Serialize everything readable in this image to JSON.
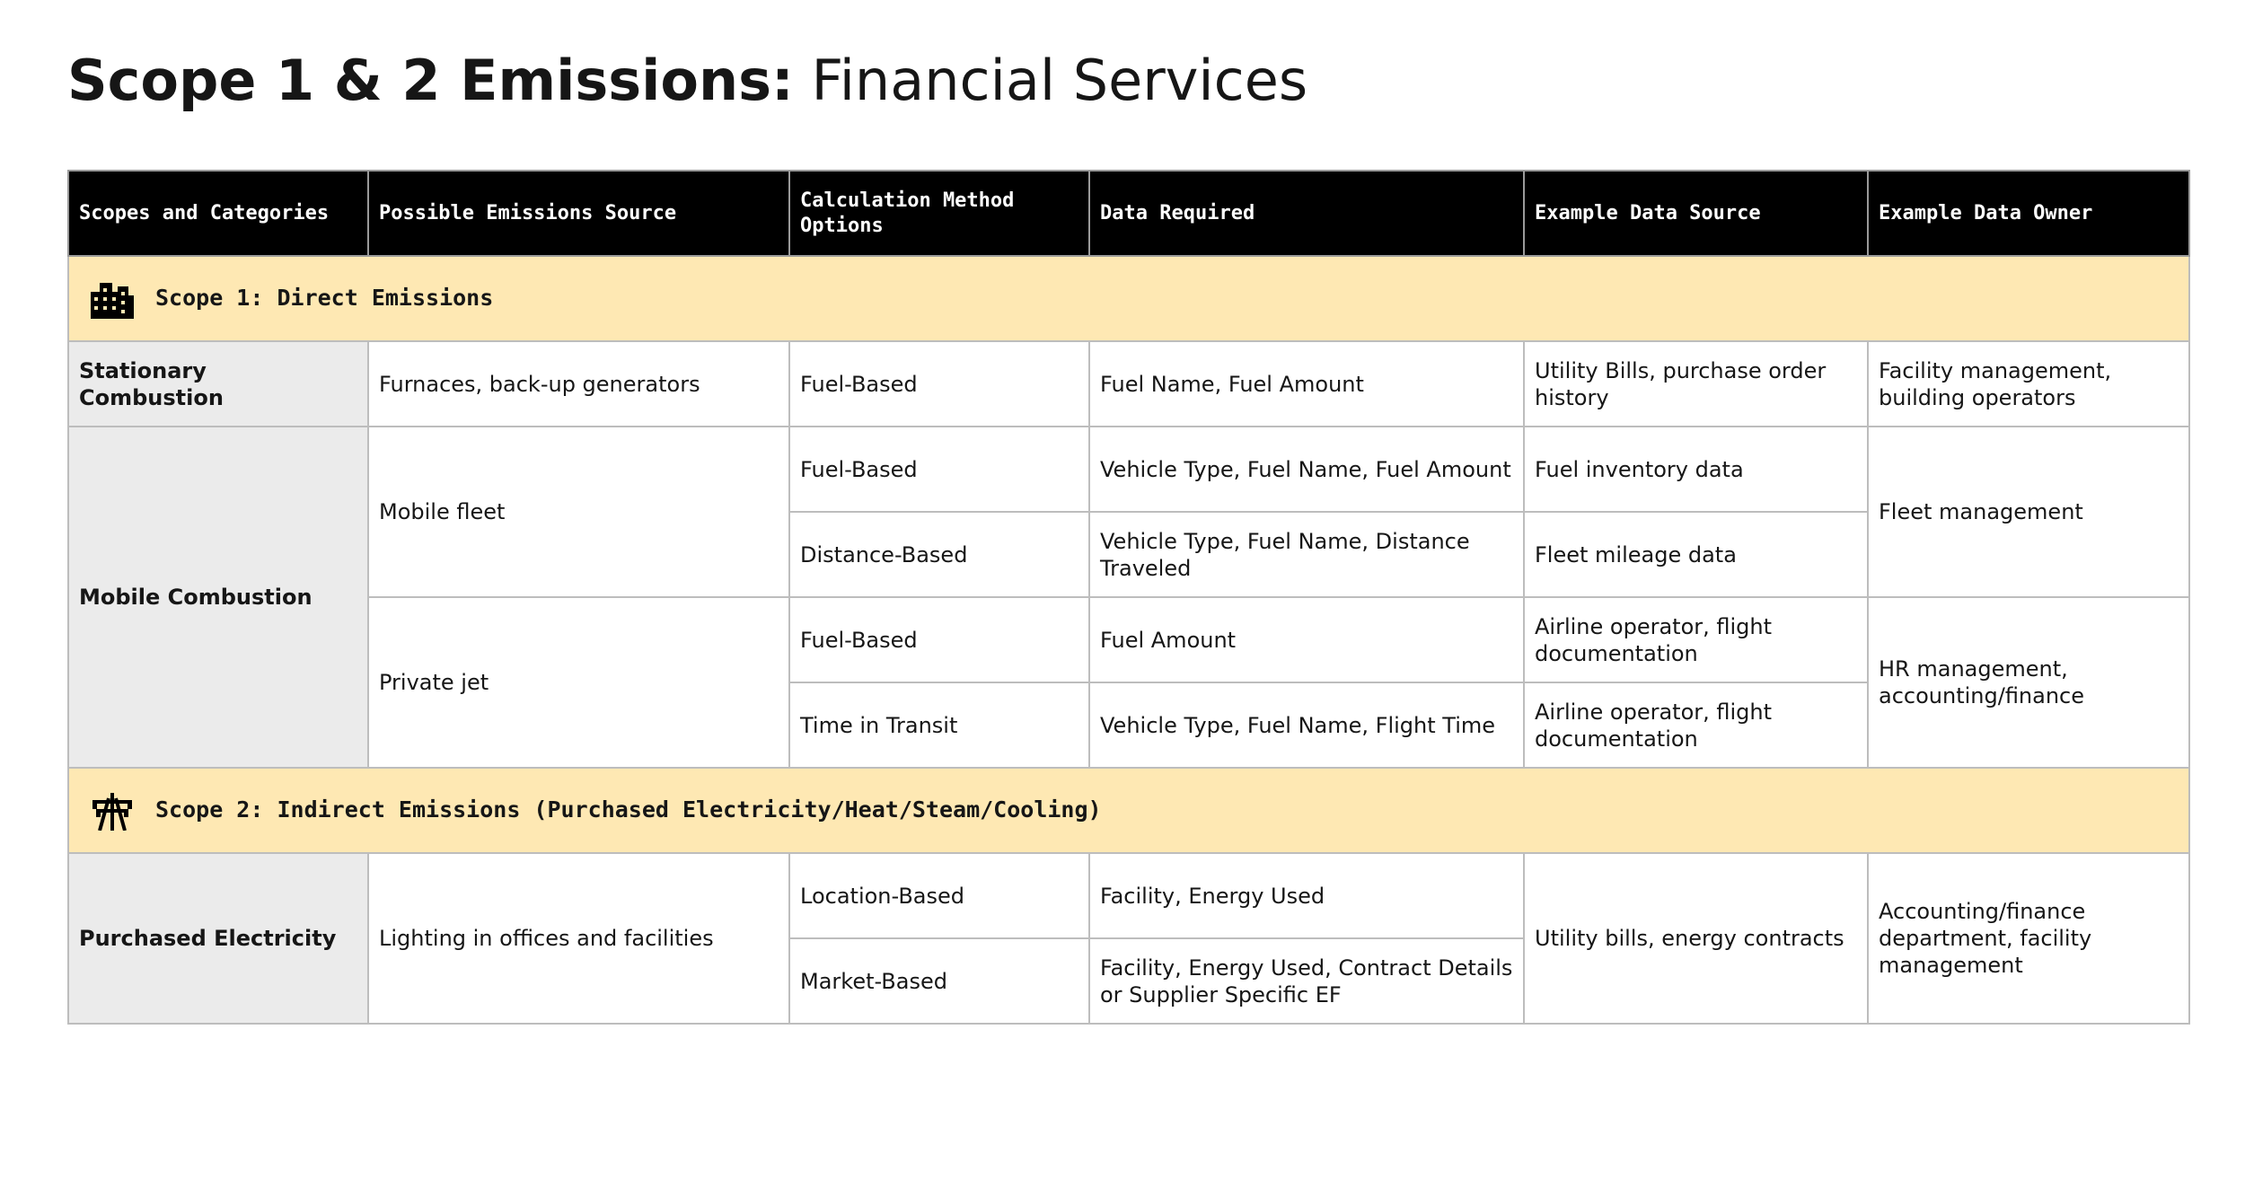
{
  "title": {
    "bold": "Scope 1 & 2 Emissions:",
    "regular": "Financial Services"
  },
  "table": {
    "headers": [
      "Scopes and Categories",
      "Possible Emissions Source",
      "Calculation Method Options",
      "Data Required",
      "Example Data Source",
      "Example Data Owner"
    ],
    "sections": [
      {
        "title": "Scope 1: Direct Emissions",
        "categories": [
          {
            "name": "Stationary Combustion",
            "sources": [
              {
                "name": "Furnaces, back-up generators",
                "owner": "Facility management, building operators",
                "methods": [
                  {
                    "method": "Fuel-Based",
                    "data": "Fuel Name, Fuel Amount",
                    "source": "Utility Bills, purchase order history"
                  }
                ]
              }
            ]
          },
          {
            "name": "Mobile Combustion",
            "sources": [
              {
                "name": "Mobile fleet",
                "owner": "Fleet management",
                "methods": [
                  {
                    "method": "Fuel-Based",
                    "data": "Vehicle Type, Fuel Name, Fuel Amount",
                    "source": "Fuel inventory data"
                  },
                  {
                    "method": "Distance-Based",
                    "data": "Vehicle Type, Fuel Name, Distance Traveled",
                    "source": "Fleet mileage data"
                  }
                ]
              },
              {
                "name": "Private jet",
                "owner": "HR management, accounting/finance",
                "methods": [
                  {
                    "method": "Fuel-Based",
                    "data": "Fuel Amount",
                    "source": "Airline operator, flight documentation"
                  },
                  {
                    "method": "Time in Transit",
                    "data": "Vehicle Type, Fuel Name, Flight Time",
                    "source": "Airline operator, flight documentation"
                  }
                ]
              }
            ]
          }
        ]
      },
      {
        "title": "Scope 2: Indirect Emissions (Purchased Electricity/Heat/Steam/Cooling)",
        "categories": [
          {
            "name": "Purchased Electricity",
            "source": "Lighting in offices and facilities",
            "data_source": "Utility bills, energy contracts",
            "owner": "Accounting/finance department, facility management",
            "methods": [
              {
                "method": "Location-Based",
                "data": "Facility, Energy Used"
              },
              {
                "method": "Market-Based",
                "data": "Facility, Energy Used, Contract Details or Supplier Specific EF"
              }
            ]
          }
        ]
      }
    ]
  }
}
